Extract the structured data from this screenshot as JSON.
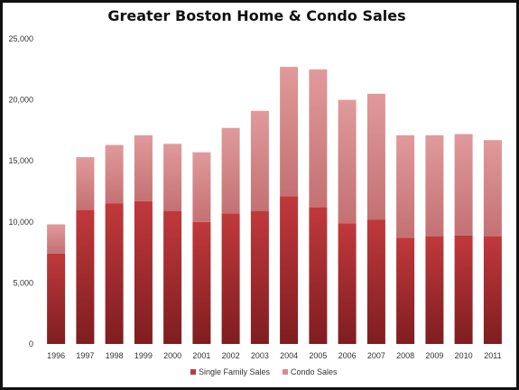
{
  "chart_data": {
    "type": "bar",
    "stacked": true,
    "title": "Greater Boston Home & Condo Sales",
    "xlabel": "",
    "ylabel": "",
    "categories": [
      "1996",
      "1997",
      "1998",
      "1999",
      "2000",
      "2001",
      "2002",
      "2003",
      "2004",
      "2005",
      "2006",
      "2007",
      "2008",
      "2009",
      "2010",
      "2011"
    ],
    "series": [
      {
        "name": "Single Family Sales",
        "color": "#c0393c",
        "values": [
          7400,
          11000,
          11500,
          11700,
          10900,
          10000,
          10700,
          10900,
          12100,
          11200,
          9900,
          10200,
          8700,
          8800,
          8900,
          8800
        ]
      },
      {
        "name": "Condo Sales",
        "color": "#d98a8b",
        "values": [
          2400,
          4300,
          4800,
          5400,
          5500,
          5700,
          7000,
          8200,
          10600,
          11300,
          10100,
          10300,
          8400,
          8300,
          8300,
          7900
        ]
      }
    ],
    "ylim": [
      0,
      25000
    ],
    "yticks": [
      "0",
      "5,000",
      "10,000",
      "15,000",
      "20,000",
      "25,000"
    ],
    "grid": false,
    "legend": "bottom"
  }
}
